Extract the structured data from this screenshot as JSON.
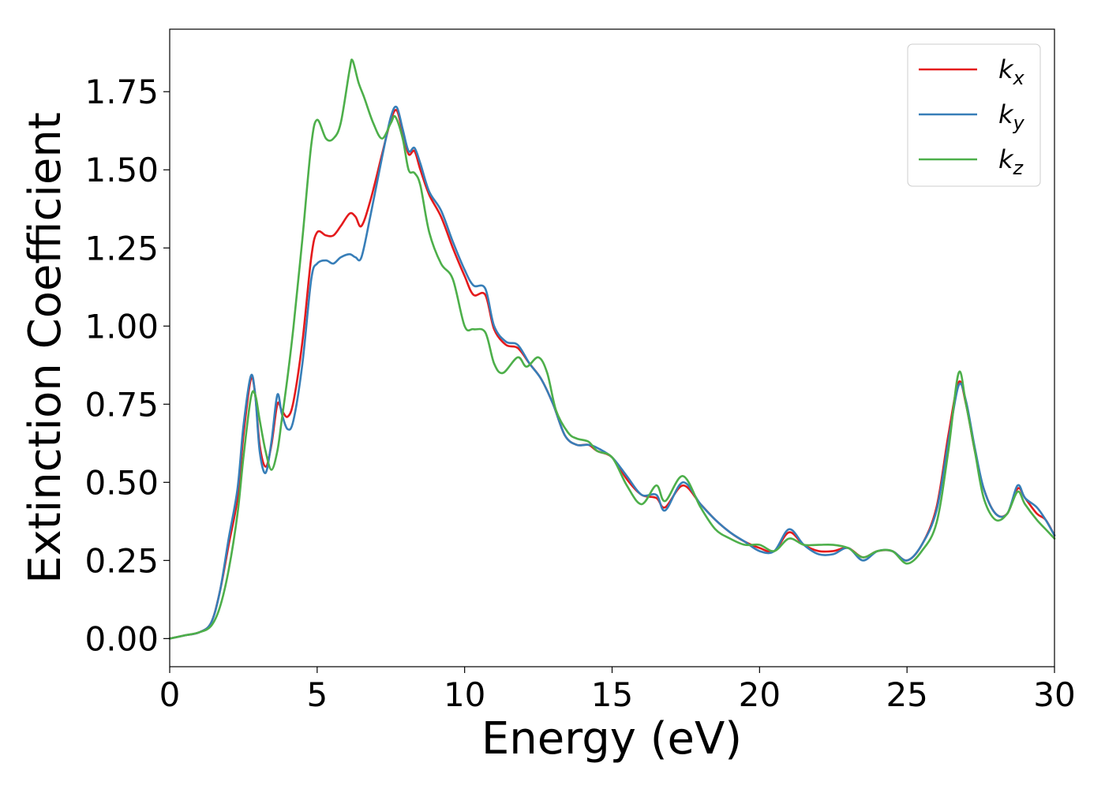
{
  "chart_data": {
    "type": "line",
    "xlabel": "Energy (eV)",
    "ylabel": "Extinction Coefficient",
    "xlim": [
      0,
      30
    ],
    "ylim": [
      -0.09,
      1.95
    ],
    "xticks": [
      0,
      5,
      10,
      15,
      20,
      25,
      30
    ],
    "xtick_labels": [
      "0",
      "5",
      "10",
      "15",
      "20",
      "25",
      "30"
    ],
    "yticks": [
      0,
      0.25,
      0.5,
      0.75,
      1.0,
      1.25,
      1.5,
      1.75
    ],
    "ytick_labels": [
      "0.00",
      "0.25",
      "0.50",
      "0.75",
      "1.00",
      "1.25",
      "1.50",
      "1.75"
    ],
    "grid": false,
    "legend_position": "top-right",
    "series": [
      {
        "name": "k_x",
        "label_main": "k",
        "label_sub": "x",
        "color": "#e41a1c",
        "points": [
          [
            0,
            0
          ],
          [
            0.5,
            0.01
          ],
          [
            1,
            0.02
          ],
          [
            1.4,
            0.05
          ],
          [
            1.7,
            0.15
          ],
          [
            2,
            0.3
          ],
          [
            2.3,
            0.45
          ],
          [
            2.5,
            0.65
          ],
          [
            2.75,
            0.83
          ],
          [
            2.9,
            0.78
          ],
          [
            3.05,
            0.62
          ],
          [
            3.25,
            0.55
          ],
          [
            3.45,
            0.62
          ],
          [
            3.65,
            0.75
          ],
          [
            3.8,
            0.73
          ],
          [
            4,
            0.71
          ],
          [
            4.2,
            0.76
          ],
          [
            4.5,
            0.95
          ],
          [
            4.8,
            1.22
          ],
          [
            5,
            1.3
          ],
          [
            5.3,
            1.29
          ],
          [
            5.55,
            1.29
          ],
          [
            5.8,
            1.32
          ],
          [
            6.1,
            1.36
          ],
          [
            6.3,
            1.35
          ],
          [
            6.5,
            1.32
          ],
          [
            6.8,
            1.4
          ],
          [
            7.2,
            1.55
          ],
          [
            7.5,
            1.66
          ],
          [
            7.7,
            1.69
          ],
          [
            7.9,
            1.62
          ],
          [
            8.1,
            1.55
          ],
          [
            8.3,
            1.56
          ],
          [
            8.5,
            1.5
          ],
          [
            8.8,
            1.42
          ],
          [
            9.2,
            1.35
          ],
          [
            9.6,
            1.25
          ],
          [
            10,
            1.16
          ],
          [
            10.3,
            1.1
          ],
          [
            10.7,
            1.1
          ],
          [
            11,
            0.99
          ],
          [
            11.4,
            0.94
          ],
          [
            11.8,
            0.93
          ],
          [
            12.2,
            0.88
          ],
          [
            12.6,
            0.83
          ],
          [
            13,
            0.75
          ],
          [
            13.4,
            0.65
          ],
          [
            13.8,
            0.62
          ],
          [
            14.2,
            0.62
          ],
          [
            14.5,
            0.6
          ],
          [
            15,
            0.58
          ],
          [
            15.5,
            0.51
          ],
          [
            16,
            0.46
          ],
          [
            16.5,
            0.45
          ],
          [
            16.8,
            0.42
          ],
          [
            17.4,
            0.49
          ],
          [
            18,
            0.43
          ],
          [
            18.5,
            0.38
          ],
          [
            19,
            0.34
          ],
          [
            19.5,
            0.31
          ],
          [
            20,
            0.29
          ],
          [
            20.5,
            0.28
          ],
          [
            21,
            0.34
          ],
          [
            21.5,
            0.3
          ],
          [
            22,
            0.28
          ],
          [
            22.5,
            0.28
          ],
          [
            23,
            0.29
          ],
          [
            23.5,
            0.26
          ],
          [
            24,
            0.28
          ],
          [
            24.5,
            0.28
          ],
          [
            25,
            0.25
          ],
          [
            25.5,
            0.3
          ],
          [
            26,
            0.42
          ],
          [
            26.4,
            0.65
          ],
          [
            26.75,
            0.82
          ],
          [
            27,
            0.75
          ],
          [
            27.3,
            0.6
          ],
          [
            27.6,
            0.48
          ],
          [
            28,
            0.4
          ],
          [
            28.4,
            0.4
          ],
          [
            28.75,
            0.48
          ],
          [
            29,
            0.45
          ],
          [
            29.4,
            0.4
          ],
          [
            29.7,
            0.38
          ],
          [
            30,
            0.33
          ]
        ]
      },
      {
        "name": "k_y",
        "label_main": "k",
        "label_sub": "y",
        "color": "#377eb8",
        "points": [
          [
            0,
            0
          ],
          [
            0.5,
            0.01
          ],
          [
            1,
            0.02
          ],
          [
            1.4,
            0.05
          ],
          [
            1.7,
            0.15
          ],
          [
            2,
            0.32
          ],
          [
            2.3,
            0.48
          ],
          [
            2.5,
            0.68
          ],
          [
            2.75,
            0.84
          ],
          [
            2.9,
            0.78
          ],
          [
            3.05,
            0.6
          ],
          [
            3.25,
            0.53
          ],
          [
            3.45,
            0.63
          ],
          [
            3.65,
            0.78
          ],
          [
            3.8,
            0.72
          ],
          [
            4,
            0.67
          ],
          [
            4.2,
            0.7
          ],
          [
            4.5,
            0.88
          ],
          [
            4.8,
            1.15
          ],
          [
            5,
            1.2
          ],
          [
            5.3,
            1.21
          ],
          [
            5.55,
            1.2
          ],
          [
            5.8,
            1.22
          ],
          [
            6.1,
            1.23
          ],
          [
            6.3,
            1.22
          ],
          [
            6.5,
            1.22
          ],
          [
            6.8,
            1.35
          ],
          [
            7.2,
            1.54
          ],
          [
            7.5,
            1.67
          ],
          [
            7.7,
            1.7
          ],
          [
            7.9,
            1.63
          ],
          [
            8.1,
            1.56
          ],
          [
            8.3,
            1.57
          ],
          [
            8.5,
            1.52
          ],
          [
            8.8,
            1.43
          ],
          [
            9.2,
            1.37
          ],
          [
            9.6,
            1.27
          ],
          [
            10,
            1.18
          ],
          [
            10.3,
            1.13
          ],
          [
            10.7,
            1.12
          ],
          [
            11,
            1.0
          ],
          [
            11.4,
            0.95
          ],
          [
            11.8,
            0.94
          ],
          [
            12.2,
            0.88
          ],
          [
            12.6,
            0.83
          ],
          [
            13,
            0.75
          ],
          [
            13.4,
            0.65
          ],
          [
            13.8,
            0.62
          ],
          [
            14.2,
            0.62
          ],
          [
            14.5,
            0.61
          ],
          [
            15,
            0.58
          ],
          [
            15.5,
            0.52
          ],
          [
            16,
            0.46
          ],
          [
            16.5,
            0.46
          ],
          [
            16.8,
            0.41
          ],
          [
            17.4,
            0.5
          ],
          [
            18,
            0.43
          ],
          [
            18.5,
            0.38
          ],
          [
            19,
            0.34
          ],
          [
            19.5,
            0.31
          ],
          [
            20,
            0.28
          ],
          [
            20.5,
            0.28
          ],
          [
            21,
            0.35
          ],
          [
            21.5,
            0.3
          ],
          [
            22,
            0.27
          ],
          [
            22.5,
            0.27
          ],
          [
            23,
            0.29
          ],
          [
            23.5,
            0.25
          ],
          [
            24,
            0.28
          ],
          [
            24.5,
            0.28
          ],
          [
            25,
            0.25
          ],
          [
            25.5,
            0.3
          ],
          [
            26,
            0.41
          ],
          [
            26.4,
            0.63
          ],
          [
            26.75,
            0.81
          ],
          [
            27,
            0.76
          ],
          [
            27.3,
            0.61
          ],
          [
            27.6,
            0.48
          ],
          [
            28,
            0.4
          ],
          [
            28.4,
            0.4
          ],
          [
            28.75,
            0.49
          ],
          [
            29,
            0.45
          ],
          [
            29.4,
            0.42
          ],
          [
            29.7,
            0.38
          ],
          [
            30,
            0.33
          ]
        ]
      },
      {
        "name": "k_z",
        "label_main": "k",
        "label_sub": "z",
        "color": "#4daf4a",
        "points": [
          [
            0,
            0
          ],
          [
            0.5,
            0.01
          ],
          [
            1,
            0.02
          ],
          [
            1.4,
            0.04
          ],
          [
            1.7,
            0.1
          ],
          [
            2,
            0.22
          ],
          [
            2.3,
            0.4
          ],
          [
            2.5,
            0.58
          ],
          [
            2.75,
            0.77
          ],
          [
            2.9,
            0.78
          ],
          [
            3.05,
            0.7
          ],
          [
            3.25,
            0.6
          ],
          [
            3.45,
            0.54
          ],
          [
            3.65,
            0.6
          ],
          [
            3.8,
            0.7
          ],
          [
            4,
            0.84
          ],
          [
            4.2,
            1.0
          ],
          [
            4.5,
            1.28
          ],
          [
            4.8,
            1.58
          ],
          [
            5,
            1.66
          ],
          [
            5.3,
            1.6
          ],
          [
            5.55,
            1.6
          ],
          [
            5.8,
            1.65
          ],
          [
            6.1,
            1.82
          ],
          [
            6.2,
            1.85
          ],
          [
            6.4,
            1.78
          ],
          [
            6.6,
            1.73
          ],
          [
            6.9,
            1.65
          ],
          [
            7.2,
            1.6
          ],
          [
            7.5,
            1.65
          ],
          [
            7.65,
            1.67
          ],
          [
            7.9,
            1.6
          ],
          [
            8.1,
            1.5
          ],
          [
            8.3,
            1.49
          ],
          [
            8.5,
            1.45
          ],
          [
            8.8,
            1.3
          ],
          [
            9.2,
            1.2
          ],
          [
            9.6,
            1.15
          ],
          [
            10,
            1.0
          ],
          [
            10.3,
            0.99
          ],
          [
            10.7,
            0.98
          ],
          [
            11,
            0.88
          ],
          [
            11.3,
            0.85
          ],
          [
            11.8,
            0.9
          ],
          [
            12.1,
            0.87
          ],
          [
            12.5,
            0.9
          ],
          [
            12.8,
            0.85
          ],
          [
            13.1,
            0.73
          ],
          [
            13.5,
            0.66
          ],
          [
            13.8,
            0.64
          ],
          [
            14.2,
            0.63
          ],
          [
            14.5,
            0.6
          ],
          [
            15,
            0.58
          ],
          [
            15.5,
            0.49
          ],
          [
            16,
            0.43
          ],
          [
            16.5,
            0.49
          ],
          [
            16.8,
            0.44
          ],
          [
            17.4,
            0.52
          ],
          [
            18,
            0.42
          ],
          [
            18.5,
            0.35
          ],
          [
            19,
            0.32
          ],
          [
            19.5,
            0.3
          ],
          [
            20,
            0.3
          ],
          [
            20.5,
            0.28
          ],
          [
            21,
            0.32
          ],
          [
            21.5,
            0.3
          ],
          [
            22,
            0.3
          ],
          [
            22.5,
            0.3
          ],
          [
            23,
            0.29
          ],
          [
            23.5,
            0.26
          ],
          [
            24,
            0.28
          ],
          [
            24.5,
            0.28
          ],
          [
            25,
            0.24
          ],
          [
            25.5,
            0.28
          ],
          [
            26,
            0.37
          ],
          [
            26.4,
            0.6
          ],
          [
            26.75,
            0.85
          ],
          [
            27,
            0.75
          ],
          [
            27.3,
            0.6
          ],
          [
            27.6,
            0.45
          ],
          [
            28,
            0.38
          ],
          [
            28.4,
            0.4
          ],
          [
            28.75,
            0.47
          ],
          [
            29,
            0.43
          ],
          [
            29.4,
            0.38
          ],
          [
            29.7,
            0.35
          ],
          [
            30,
            0.32
          ]
        ]
      }
    ]
  }
}
